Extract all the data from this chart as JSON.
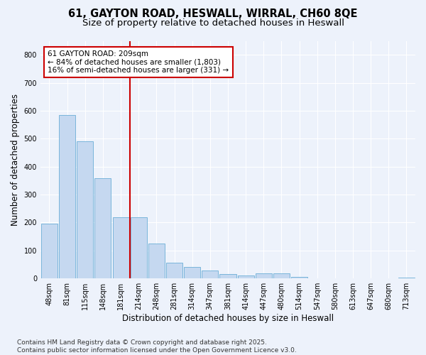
{
  "title_line1": "61, GAYTON ROAD, HESWALL, WIRRAL, CH60 8QE",
  "title_line2": "Size of property relative to detached houses in Heswall",
  "xlabel": "Distribution of detached houses by size in Heswall",
  "ylabel": "Number of detached properties",
  "categories": [
    "48sqm",
    "81sqm",
    "115sqm",
    "148sqm",
    "181sqm",
    "214sqm",
    "248sqm",
    "281sqm",
    "314sqm",
    "347sqm",
    "381sqm",
    "414sqm",
    "447sqm",
    "480sqm",
    "514sqm",
    "547sqm",
    "580sqm",
    "613sqm",
    "647sqm",
    "680sqm",
    "713sqm"
  ],
  "values": [
    197,
    585,
    490,
    358,
    220,
    220,
    125,
    57,
    40,
    28,
    15,
    10,
    18,
    18,
    5,
    0,
    0,
    0,
    0,
    0,
    3
  ],
  "bar_color": "#c5d8f0",
  "bar_edge_color": "#6baed6",
  "property_line_x": 4.5,
  "property_line_color": "#cc0000",
  "annotation_text": "61 GAYTON ROAD: 209sqm\n← 84% of detached houses are smaller (1,803)\n16% of semi-detached houses are larger (331) →",
  "annotation_box_color": "#cc0000",
  "ylim": [
    0,
    850
  ],
  "yticks": [
    0,
    100,
    200,
    300,
    400,
    500,
    600,
    700,
    800
  ],
  "background_color": "#edf2fb",
  "grid_color": "#ffffff",
  "footer_text": "Contains HM Land Registry data © Crown copyright and database right 2025.\nContains public sector information licensed under the Open Government Licence v3.0.",
  "title_fontsize": 10.5,
  "subtitle_fontsize": 9.5,
  "axis_label_fontsize": 8.5,
  "tick_fontsize": 7,
  "annotation_fontsize": 7.5,
  "footer_fontsize": 6.5
}
